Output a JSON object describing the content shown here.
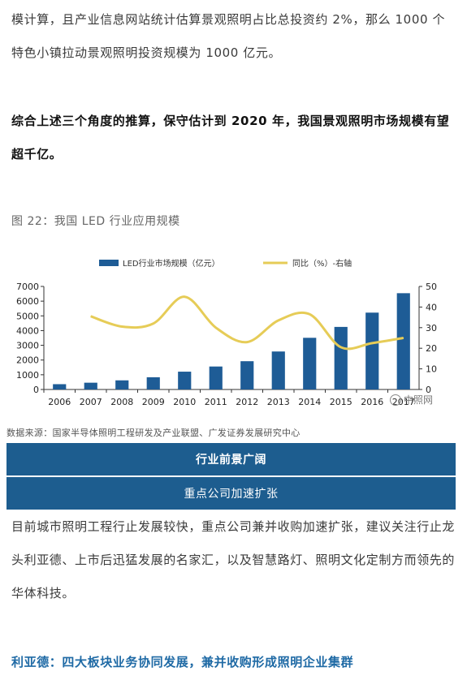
{
  "paragraphs": {
    "p1": "模计算，且产业信息网站统计估算景观照明占比总投资约 2%，那么 1000 个特色小镇拉动景观照明投资规模为 1000 亿元。",
    "p2": "综合上述三个角度的推算，保守估计到 2020 年，我国景观照明市场规模有望超千亿。",
    "p3": "目前城市照明工程行止发展较快，重点公司兼并收购加速扩张，建议关注行止龙头利亚德、上市后迅猛发展的名家汇，以及智慧路灯、照明文化定制方而领先的华体科技。",
    "p4": "利亚德：四大板块业务协同发展，兼并收购形成照明企业集群"
  },
  "figure_caption": "图 22：我国 LED 行业应用规模",
  "source_note": "数据来源：国家半导体照明工程研发及产业联盟、广发证券发展研究中心",
  "banners": {
    "b1": "行业前景广阔",
    "b2": "重点公司加速扩张"
  },
  "watermark": "中照网",
  "colors": {
    "bar": "#1e5c96",
    "line": "#e6cc57",
    "banner": "#1d5d8f",
    "highlight": "#1f6aa5"
  },
  "chart_data": {
    "type": "bar",
    "title": "",
    "categories": [
      "2006",
      "2007",
      "2008",
      "2009",
      "2010",
      "2011",
      "2012",
      "2013",
      "2014",
      "2015",
      "2016",
      "2017"
    ],
    "x_tick_labels": [
      "2006",
      "2007",
      "2008",
      "2009",
      "2010",
      "2011",
      "2012",
      "2013",
      "2014",
      "2015",
      "2016",
      "2017"
    ],
    "series": [
      {
        "name": "LED行业市场规模（亿元）",
        "type": "bar",
        "axis": "left",
        "values": [
          360,
          460,
          620,
          830,
          1210,
          1560,
          1920,
          2580,
          3510,
          4250,
          5220,
          6540
        ]
      },
      {
        "name": "同比（%）-右轴",
        "type": "line",
        "axis": "right",
        "values": [
          null,
          35.5,
          30.5,
          32,
          45,
          30,
          23,
          33.5,
          36.5,
          20.5,
          22.5,
          25
        ]
      }
    ],
    "ylim_left": [
      0,
      7000
    ],
    "yticks_left": [
      0,
      1000,
      2000,
      3000,
      4000,
      5000,
      6000,
      7000
    ],
    "ylim_right": [
      0,
      50
    ],
    "yticks_right": [
      0,
      10,
      20,
      30,
      40,
      50
    ],
    "legend_position": "top-center",
    "grid": false
  }
}
